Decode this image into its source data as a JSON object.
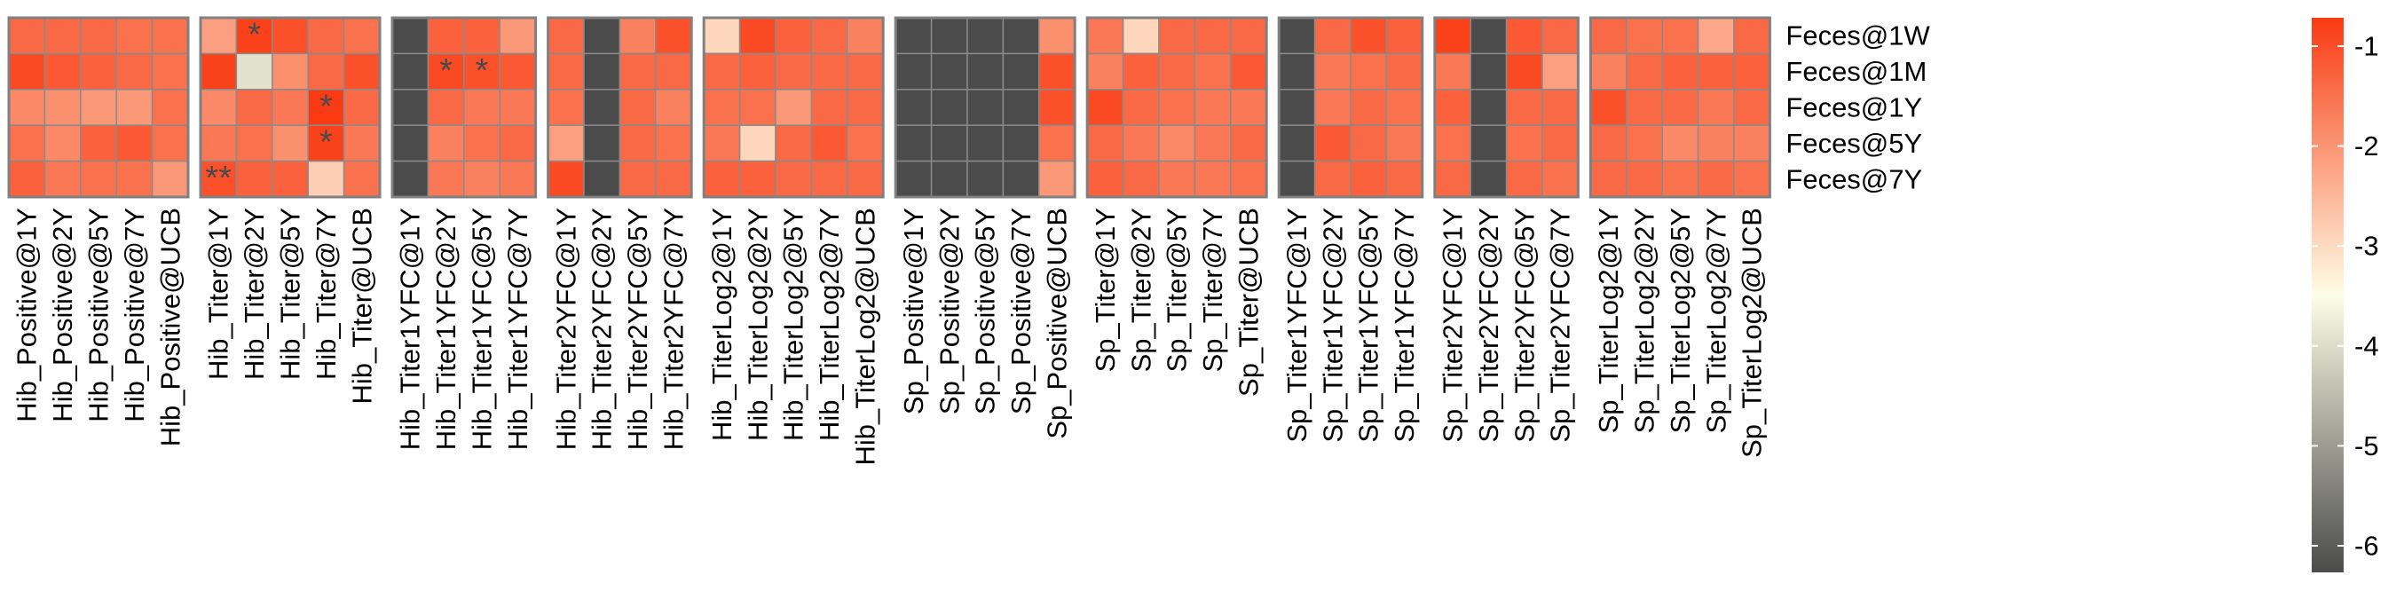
{
  "chart_data": {
    "type": "heatmap",
    "rows": [
      "Feces@1W",
      "Feces@1M",
      "Feces@1Y",
      "Feces@5Y",
      "Feces@7Y"
    ],
    "colorbar": {
      "range": [
        -6,
        -1
      ],
      "ticks": [
        -1,
        -2,
        -3,
        -4,
        -5,
        -6
      ],
      "colors": {
        "high": "#f93a12",
        "mid": "#fefde6",
        "low": "#4b4b4b"
      }
    },
    "panels": [
      {
        "columns": [
          "Hib_Positive@1Y",
          "Hib_Positive@2Y",
          "Hib_Positive@5Y",
          "Hib_Positive@7Y",
          "Hib_Positive@UCB"
        ],
        "values": [
          [
            -1.6,
            -1.6,
            -1.6,
            -1.7,
            -1.7
          ],
          [
            -1.2,
            -1.4,
            -1.5,
            -1.6,
            -1.7
          ],
          [
            -2.0,
            -2.1,
            -2.2,
            -2.2,
            -1.7
          ],
          [
            -1.7,
            -2.0,
            -1.5,
            -1.4,
            -1.7
          ],
          [
            -1.5,
            -1.8,
            -1.7,
            -1.7,
            -2.2
          ]
        ],
        "stars": []
      },
      {
        "columns": [
          "Hib_Titer@1Y",
          "Hib_Titer@2Y",
          "Hib_Titer@5Y",
          "Hib_Titer@7Y",
          "Hib_Titer@UCB"
        ],
        "values": [
          [
            -2.3,
            -1.1,
            -1.3,
            -1.6,
            -1.7
          ],
          [
            -1.1,
            -3.9,
            -2.1,
            -1.6,
            -1.3
          ],
          [
            -2.0,
            -1.6,
            -1.8,
            -1.0,
            -1.6
          ],
          [
            -1.8,
            -1.7,
            -2.1,
            -1.1,
            -1.8
          ],
          [
            -1.3,
            -1.5,
            -1.5,
            -2.9,
            -1.7
          ]
        ],
        "stars": [
          {
            "row": 0,
            "col": 1,
            "text": "*"
          },
          {
            "row": 2,
            "col": 3,
            "text": "*"
          },
          {
            "row": 3,
            "col": 3,
            "text": "*"
          },
          {
            "row": 4,
            "col": 0,
            "text": "**"
          }
        ]
      },
      {
        "columns": [
          "Hib_Titer1YFC@1Y",
          "Hib_Titer1YFC@2Y",
          "Hib_Titer1YFC@5Y",
          "Hib_Titer1YFC@7Y"
        ],
        "values": [
          [
            -6.0,
            -1.5,
            -1.5,
            -2.2
          ],
          [
            -6.0,
            -1.2,
            -1.3,
            -1.4
          ],
          [
            -6.0,
            -1.6,
            -1.8,
            -1.8
          ],
          [
            -6.0,
            -1.9,
            -1.7,
            -1.6
          ],
          [
            -6.0,
            -1.8,
            -1.9,
            -1.8
          ]
        ],
        "stars": [
          {
            "row": 1,
            "col": 1,
            "text": "*"
          },
          {
            "row": 1,
            "col": 2,
            "text": "*"
          }
        ]
      },
      {
        "columns": [
          "Hib_Titer2YFC@1Y",
          "Hib_Titer2YFC@2Y",
          "Hib_Titer2YFC@5Y",
          "Hib_Titer2YFC@7Y"
        ],
        "values": [
          [
            -1.6,
            -6.0,
            -1.9,
            -1.3
          ],
          [
            -1.6,
            -6.0,
            -1.6,
            -1.6
          ],
          [
            -1.7,
            -6.0,
            -1.6,
            -1.9
          ],
          [
            -2.3,
            -6.0,
            -1.6,
            -1.7
          ],
          [
            -1.2,
            -6.0,
            -1.6,
            -1.6
          ]
        ],
        "stars": []
      },
      {
        "columns": [
          "Hib_TiterLog2@1Y",
          "Hib_TiterLog2@2Y",
          "Hib_TiterLog2@5Y",
          "Hib_TiterLog2@7Y",
          "Hib_TiterLog2@UCB"
        ],
        "values": [
          [
            -3.0,
            -1.2,
            -1.5,
            -1.6,
            -1.9
          ],
          [
            -1.6,
            -1.5,
            -1.6,
            -1.6,
            -1.6
          ],
          [
            -1.7,
            -1.7,
            -2.2,
            -1.6,
            -1.6
          ],
          [
            -1.8,
            -3.0,
            -1.6,
            -1.4,
            -1.7
          ],
          [
            -1.5,
            -1.5,
            -1.6,
            -1.6,
            -1.6
          ]
        ],
        "stars": []
      },
      {
        "columns": [
          "Sp_Positive@1Y",
          "Sp_Positive@2Y",
          "Sp_Positive@5Y",
          "Sp_Positive@7Y",
          "Sp_Positive@UCB"
        ],
        "values": [
          [
            -6.0,
            -6.0,
            -6.0,
            -6.0,
            -2.1
          ],
          [
            -6.0,
            -6.0,
            -6.0,
            -6.0,
            -1.3
          ],
          [
            -6.0,
            -6.0,
            -6.0,
            -6.0,
            -1.3
          ],
          [
            -6.0,
            -6.0,
            -6.0,
            -6.0,
            -1.7
          ],
          [
            -6.0,
            -6.0,
            -6.0,
            -6.0,
            -2.2
          ]
        ],
        "stars": []
      },
      {
        "columns": [
          "Sp_Titer@1Y",
          "Sp_Titer@2Y",
          "Sp_Titer@5Y",
          "Sp_Titer@7Y",
          "Sp_Titer@UCB"
        ],
        "values": [
          [
            -1.8,
            -3.0,
            -1.6,
            -1.6,
            -1.6
          ],
          [
            -1.9,
            -1.5,
            -1.6,
            -1.7,
            -1.4
          ],
          [
            -1.2,
            -1.6,
            -1.7,
            -1.8,
            -1.8
          ],
          [
            -1.6,
            -1.8,
            -2.0,
            -1.8,
            -1.6
          ],
          [
            -1.5,
            -1.6,
            -1.8,
            -1.8,
            -1.7
          ]
        ],
        "stars": []
      },
      {
        "columns": [
          "Sp_Titer1YFC@1Y",
          "Sp_Titer1YFC@2Y",
          "Sp_Titer1YFC@5Y",
          "Sp_Titer1YFC@7Y"
        ],
        "values": [
          [
            -6.0,
            -1.6,
            -1.3,
            -1.5
          ],
          [
            -6.0,
            -1.8,
            -1.7,
            -1.6
          ],
          [
            -6.0,
            -1.8,
            -1.6,
            -1.7
          ],
          [
            -6.0,
            -1.4,
            -1.6,
            -1.8
          ],
          [
            -6.0,
            -1.6,
            -1.5,
            -1.6
          ]
        ],
        "stars": []
      },
      {
        "columns": [
          "Sp_Titer2YFC@1Y",
          "Sp_Titer2YFC@2Y",
          "Sp_Titer2YFC@5Y",
          "Sp_Titer2YFC@7Y"
        ],
        "values": [
          [
            -1.1,
            -6.0,
            -1.4,
            -1.6
          ],
          [
            -1.8,
            -6.0,
            -1.2,
            -2.3
          ],
          [
            -1.5,
            -6.0,
            -1.6,
            -1.6
          ],
          [
            -1.7,
            -6.0,
            -1.7,
            -1.6
          ],
          [
            -1.6,
            -6.0,
            -1.6,
            -1.7
          ]
        ],
        "stars": []
      },
      {
        "columns": [
          "Sp_TiterLog2@1Y",
          "Sp_TiterLog2@2Y",
          "Sp_TiterLog2@5Y",
          "Sp_TiterLog2@7Y",
          "Sp_TiterLog2@UCB"
        ],
        "values": [
          [
            -1.6,
            -1.7,
            -1.7,
            -2.4,
            -1.6
          ],
          [
            -1.9,
            -1.6,
            -1.5,
            -1.5,
            -1.5
          ],
          [
            -1.3,
            -1.6,
            -1.6,
            -1.8,
            -1.6
          ],
          [
            -1.6,
            -1.7,
            -2.0,
            -1.9,
            -1.9
          ],
          [
            -1.6,
            -1.6,
            -1.7,
            -1.6,
            -1.7
          ]
        ],
        "stars": []
      }
    ]
  }
}
